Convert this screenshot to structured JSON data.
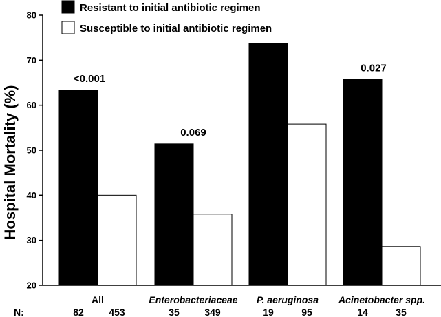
{
  "chart_data": {
    "type": "bar",
    "ylabel": "Hospital Mortality (%)",
    "ylim": [
      20,
      80
    ],
    "yticks": [
      20,
      30,
      40,
      50,
      60,
      70,
      80
    ],
    "categories": [
      "All",
      "Enterobacteriaceae",
      "P. aeruginosa",
      "Acinetobacter spp."
    ],
    "categories_italic": [
      false,
      true,
      true,
      true
    ],
    "series": [
      {
        "name": "Resistant to initial antibiotic regimen",
        "color": "#000000",
        "values": [
          63.3,
          51.4,
          73.7,
          65.7
        ]
      },
      {
        "name": "Susceptible to initial antibiotic regimen",
        "color": "#ffffff",
        "values": [
          40.0,
          35.8,
          55.8,
          28.6
        ]
      }
    ],
    "p_values": [
      "<0.001",
      "0.069",
      "",
      "0.027"
    ],
    "n_label": "N:",
    "n_values": [
      [
        "82",
        "453"
      ],
      [
        "35",
        "349"
      ],
      [
        "19",
        "95"
      ],
      [
        "14",
        "35"
      ]
    ],
    "legend_position": "top-left",
    "grid": false
  }
}
